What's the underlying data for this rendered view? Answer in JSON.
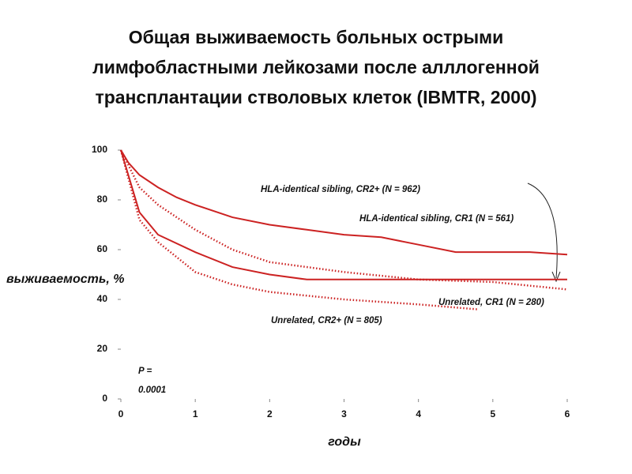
{
  "chart_data": {
    "type": "line",
    "title": "Общая выживаемость больных острыми лимфобластными лейкозами после алллогенной трансплантации стволовых клеток (IBMTR, 2000)",
    "x_label": "годы",
    "y_label": "выживаемость, %",
    "xlim": [
      0,
      6
    ],
    "xticks": [
      0,
      1,
      2,
      3,
      4,
      5,
      6
    ],
    "ylim": [
      0,
      100
    ],
    "yticks": [
      0,
      20,
      40,
      60,
      80,
      100
    ],
    "series": [
      {
        "name": "HLA-identical sibling, CR1 (N = 561)",
        "color": "#cc2222",
        "style": "solid",
        "x": [
          0,
          0.1,
          0.25,
          0.5,
          0.75,
          1,
          1.5,
          2,
          2.5,
          3,
          3.5,
          4,
          4.5,
          5,
          5.5,
          6
        ],
        "values": [
          100,
          95,
          90,
          85,
          81,
          78,
          73,
          70,
          68,
          66,
          65,
          62,
          59,
          59,
          59,
          58
        ]
      },
      {
        "name": "HLA-identical sibling, CR2+ (N = 962)",
        "color": "#cc2222",
        "style": "dotted",
        "x": [
          0,
          0.25,
          0.5,
          1,
          1.5,
          2,
          2.5,
          3,
          4,
          5,
          6
        ],
        "values": [
          100,
          85,
          78,
          68,
          60,
          55,
          53,
          51,
          48,
          47,
          44
        ]
      },
      {
        "name": "Unrelated, CR1 (N = 280)",
        "color": "#cc2222",
        "style": "solid",
        "x": [
          0,
          0.25,
          0.5,
          1,
          1.5,
          2,
          2.5,
          3,
          4,
          5,
          6
        ],
        "values": [
          100,
          75,
          66,
          59,
          53,
          50,
          48,
          48,
          48,
          48,
          48
        ]
      },
      {
        "name": "Unrelated, CR2+ (N = 805)",
        "color": "#cc2222",
        "style": "dotted",
        "x": [
          0,
          0.25,
          0.5,
          1,
          1.5,
          2,
          3,
          4,
          4.8
        ],
        "values": [
          100,
          72,
          63,
          51,
          46,
          43,
          40,
          38,
          36
        ]
      }
    ],
    "annotations": [
      [
        "P =",
        "0.0001"
      ]
    ]
  }
}
